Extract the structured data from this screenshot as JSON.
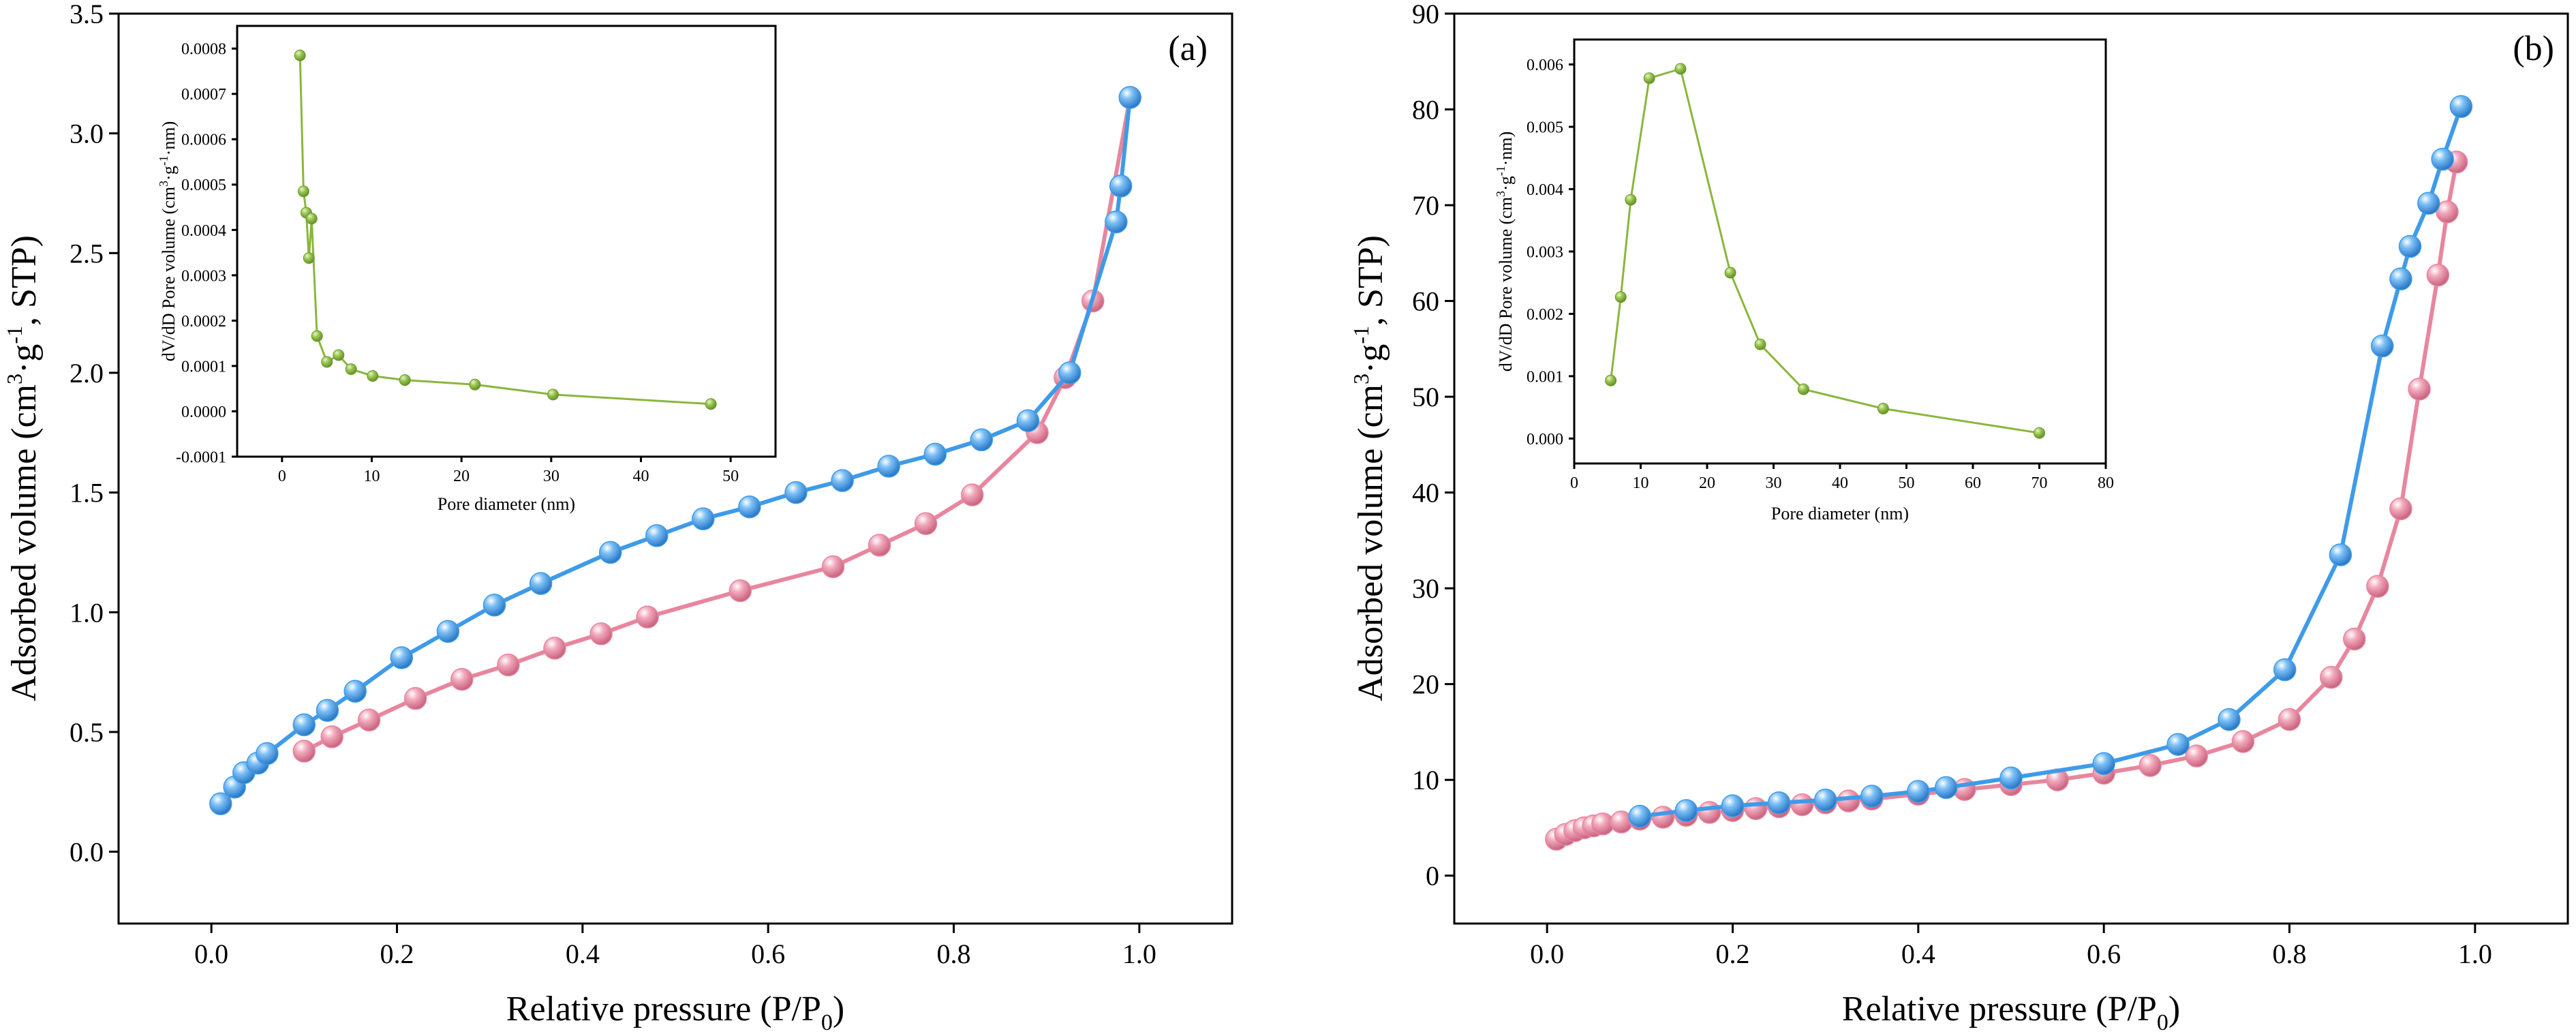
{
  "figure": {
    "colors": {
      "adsorption": "#e8869e",
      "desorption": "#3e9be8",
      "pore_distribution": "#8ab63d",
      "axis": "#000000"
    }
  },
  "chart_data": [
    {
      "panel": "a",
      "panel_label": "(a)",
      "type": "line",
      "xlabel": "Relative pressure (P/P",
      "xlabel_sub": "0",
      "xlabel_end": ")",
      "ylabel_pre": "Adsorbed volume (cm",
      "ylabel_sup1": "3",
      "ylabel_mid": "·g",
      "ylabel_sup2": "-1",
      "ylabel_end": ",  STP)",
      "xlim": [
        -0.1,
        1.1
      ],
      "ylim": [
        -0.3,
        3.5
      ],
      "xticks": [
        "0.0",
        "0.2",
        "0.4",
        "0.6",
        "0.8",
        "1.0"
      ],
      "yticks": [
        "0.0",
        "0.5",
        "1.0",
        "1.5",
        "2.0",
        "2.5",
        "3.0",
        "3.5"
      ],
      "series": [
        {
          "name": "adsorption",
          "x": [
            0.1,
            0.13,
            0.17,
            0.22,
            0.27,
            0.32,
            0.37,
            0.42,
            0.47,
            0.57,
            0.67,
            0.72,
            0.77,
            0.82,
            0.89,
            0.92,
            0.95,
            0.99
          ],
          "y": [
            0.42,
            0.48,
            0.55,
            0.64,
            0.72,
            0.78,
            0.85,
            0.91,
            0.98,
            1.09,
            1.19,
            1.28,
            1.37,
            1.49,
            1.75,
            1.98,
            2.3,
            3.15
          ]
        },
        {
          "name": "desorption",
          "x": [
            0.01,
            0.025,
            0.035,
            0.05,
            0.06,
            0.1,
            0.125,
            0.155,
            0.205,
            0.255,
            0.305,
            0.355,
            0.43,
            0.48,
            0.53,
            0.58,
            0.63,
            0.68,
            0.73,
            0.78,
            0.83,
            0.88,
            0.925,
            0.975,
            0.98,
            0.99
          ],
          "y": [
            0.2,
            0.27,
            0.33,
            0.37,
            0.41,
            0.53,
            0.59,
            0.67,
            0.81,
            0.92,
            1.03,
            1.12,
            1.25,
            1.32,
            1.39,
            1.44,
            1.5,
            1.55,
            1.61,
            1.66,
            1.72,
            1.8,
            2.0,
            2.63,
            2.78,
            3.15
          ]
        }
      ],
      "inset": {
        "type": "line",
        "xlabel": "Pore diameter (nm)",
        "ylabel_pre": "dV/dD Pore volume (cm",
        "ylabel_sup1": "3",
        "ylabel_mid": "·g",
        "ylabel_sup2": "-1",
        "ylabel_end": "·nm)",
        "xlim": [
          -5,
          55
        ],
        "ylim": [
          -0.0001,
          0.00085
        ],
        "xticks": [
          "0",
          "10",
          "20",
          "30",
          "40",
          "50"
        ],
        "yticks": [
          "-0.0001",
          "0.0000",
          "0.0001",
          "0.0002",
          "0.0003",
          "0.0004",
          "0.0005",
          "0.0006",
          "0.0007",
          "0.0008"
        ],
        "x": [
          2.0,
          2.4,
          2.7,
          3.0,
          3.3,
          3.9,
          5.0,
          6.3,
          7.7,
          10.1,
          13.7,
          21.5,
          30.2,
          47.8
        ],
        "y": [
          0.000785,
          0.000485,
          0.000438,
          0.000338,
          0.000425,
          0.000166,
          0.000109,
          0.000124,
          9.3e-05,
          7.8e-05,
          6.9e-05,
          5.9e-05,
          3.7e-05,
          1.6e-05
        ]
      }
    },
    {
      "panel": "b",
      "panel_label": "(b)",
      "type": "line",
      "xlabel": "Relative pressure (P/P",
      "xlabel_sub": "0",
      "xlabel_end": ")",
      "ylabel_pre": "Adsorbed volume (cm",
      "ylabel_sup1": "3",
      "ylabel_mid": "·g",
      "ylabel_sup2": "-1",
      "ylabel_end": ",  STP)",
      "xlim": [
        -0.1,
        1.1
      ],
      "ylim": [
        -5,
        90
      ],
      "xticks": [
        "0.0",
        "0.2",
        "0.4",
        "0.6",
        "0.8",
        "1.0"
      ],
      "yticks": [
        "0",
        "10",
        "20",
        "30",
        "40",
        "50",
        "60",
        "70",
        "80",
        "90"
      ],
      "series": [
        {
          "name": "adsorption",
          "x": [
            0.01,
            0.02,
            0.03,
            0.04,
            0.05,
            0.06,
            0.08,
            0.1,
            0.125,
            0.15,
            0.175,
            0.2,
            0.225,
            0.25,
            0.275,
            0.3,
            0.325,
            0.35,
            0.4,
            0.45,
            0.5,
            0.55,
            0.6,
            0.65,
            0.7,
            0.75,
            0.8,
            0.845,
            0.87,
            0.895,
            0.92,
            0.94,
            0.96,
            0.97,
            0.98
          ],
          "y": [
            3.8,
            4.3,
            4.7,
            5.0,
            5.2,
            5.4,
            5.6,
            5.9,
            6.1,
            6.3,
            6.6,
            6.8,
            7.0,
            7.2,
            7.4,
            7.6,
            7.8,
            8.0,
            8.5,
            9.0,
            9.5,
            10.0,
            10.7,
            11.5,
            12.5,
            14.0,
            16.3,
            20.7,
            24.7,
            30.2,
            38.3,
            50.8,
            62.7,
            69.3,
            74.5
          ]
        },
        {
          "name": "desorption",
          "x": [
            0.1,
            0.15,
            0.2,
            0.25,
            0.3,
            0.35,
            0.4,
            0.43,
            0.5,
            0.6,
            0.68,
            0.735,
            0.795,
            0.855,
            0.9,
            0.92,
            0.93,
            0.95,
            0.965,
            0.985
          ],
          "y": [
            6.2,
            6.8,
            7.3,
            7.6,
            7.9,
            8.3,
            8.8,
            9.2,
            10.2,
            11.7,
            13.7,
            16.3,
            21.5,
            33.5,
            55.3,
            62.3,
            65.7,
            70.2,
            74.8,
            80.3
          ]
        }
      ],
      "inset": {
        "type": "line",
        "xlabel": "Pore diameter (nm)",
        "ylabel_pre": "dV/dD Pore volume (cm",
        "ylabel_sup1": "3",
        "ylabel_mid": "·g",
        "ylabel_sup2": "-1",
        "ylabel_end": "·nm)",
        "xlim": [
          0,
          80
        ],
        "ylim": [
          -0.0004,
          0.0064
        ],
        "xticks": [
          "0",
          "10",
          "20",
          "30",
          "40",
          "50",
          "60",
          "70",
          "80"
        ],
        "yticks": [
          "0.000",
          "0.001",
          "0.002",
          "0.003",
          "0.004",
          "0.005",
          "0.006"
        ],
        "x": [
          5.5,
          7.0,
          8.5,
          11.3,
          16.0,
          23.5,
          28.0,
          34.5,
          46.5,
          70.0
        ],
        "y": [
          0.00093,
          0.00227,
          0.00383,
          0.00578,
          0.00593,
          0.00266,
          0.00151,
          0.00079,
          0.00048,
          9e-05
        ]
      }
    }
  ]
}
